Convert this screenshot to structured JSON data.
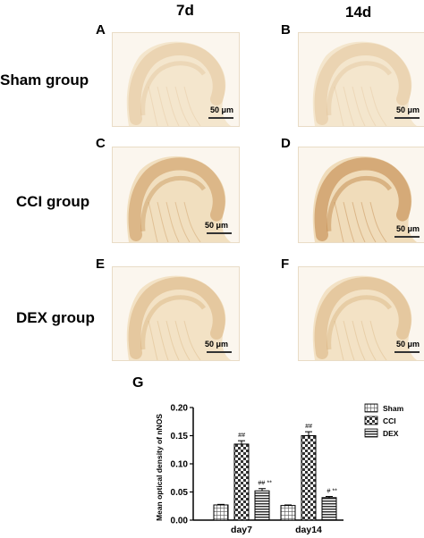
{
  "columns": [
    "7d",
    "14d"
  ],
  "rows": [
    {
      "label": "Sham group",
      "panels": [
        "A",
        "B"
      ]
    },
    {
      "label": "CCI group",
      "panels": [
        "C",
        "D"
      ]
    },
    {
      "label": "DEX group",
      "panels": [
        "E",
        "F"
      ]
    }
  ],
  "scale_bar": "50 μm",
  "staining": {
    "A": {
      "tissue": "#f4e6cd",
      "stain": "#d2a46a",
      "intensity": 0.45
    },
    "B": {
      "tissue": "#f4e6cd",
      "stain": "#d2a46a",
      "intensity": 0.45
    },
    "C": {
      "tissue": "#f1dfbf",
      "stain": "#c48c4e",
      "intensity": 0.8
    },
    "D": {
      "tissue": "#f0dcba",
      "stain": "#bf8446",
      "intensity": 0.95
    },
    "E": {
      "tissue": "#f3e2c5",
      "stain": "#cc9a5c",
      "intensity": 0.6
    },
    "F": {
      "tissue": "#f3e2c5",
      "stain": "#cc9a5c",
      "intensity": 0.6
    }
  },
  "chart_data": {
    "panel_label": "G",
    "type": "bar",
    "ylabel": "Mean optical density of nNOS",
    "ylim": [
      0,
      0.2
    ],
    "yticks": [
      "0.00",
      "0.05",
      "0.10",
      "0.15",
      "0.20"
    ],
    "categories": [
      "day7",
      "day14"
    ],
    "series": [
      {
        "name": "Sham",
        "values": [
          0.027,
          0.026
        ],
        "errors": [
          0.001,
          0.001
        ],
        "annotations": [
          "",
          ""
        ],
        "pattern": "grid"
      },
      {
        "name": "CCI",
        "values": [
          0.135,
          0.15
        ],
        "errors": [
          0.006,
          0.007
        ],
        "annotations": [
          "##",
          "##"
        ],
        "pattern": "check"
      },
      {
        "name": "DEX",
        "values": [
          0.052,
          0.04
        ],
        "errors": [
          0.004,
          0.002
        ],
        "annotations": [
          "## **",
          "# **"
        ],
        "pattern": "hlines"
      }
    ],
    "legend_position": "right"
  }
}
